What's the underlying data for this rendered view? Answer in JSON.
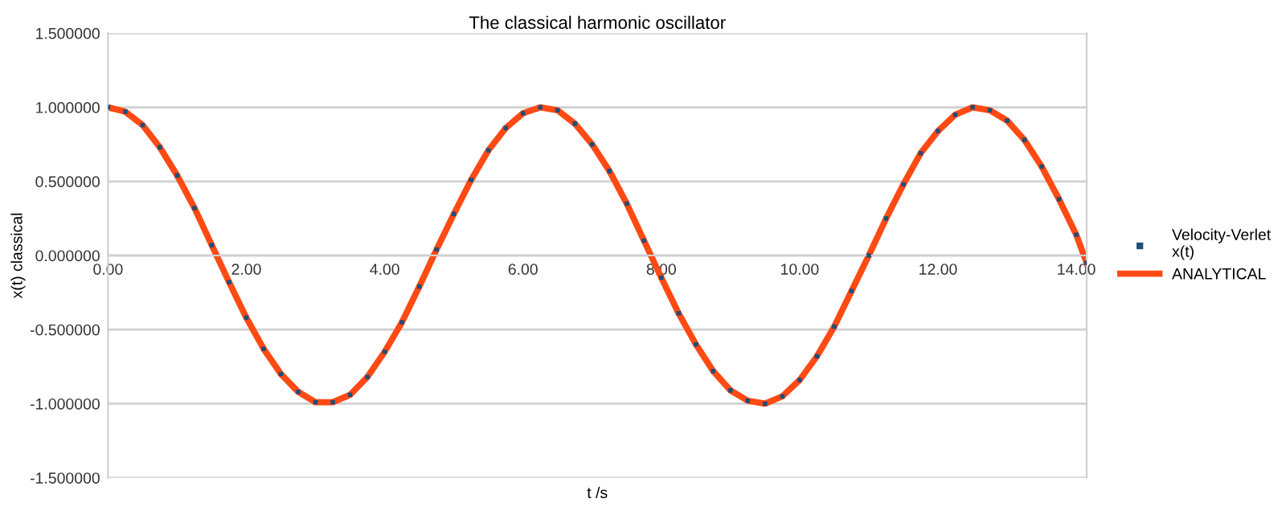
{
  "chart_data": {
    "type": "line",
    "title": "The classical harmonic oscillator",
    "xlabel": "t /s",
    "ylabel": "x(t) classical",
    "x": [
      0,
      0.25,
      0.5,
      0.75,
      1.0,
      1.25,
      1.5,
      1.75,
      2.0,
      2.25,
      2.5,
      2.75,
      3.0,
      3.25,
      3.5,
      3.75,
      4.0,
      4.25,
      4.5,
      4.75,
      5.0,
      5.25,
      5.5,
      5.75,
      6.0,
      6.25,
      6.5,
      6.75,
      7.0,
      7.25,
      7.5,
      7.75,
      8.0,
      8.25,
      8.5,
      8.75,
      9.0,
      9.25,
      9.5,
      9.75,
      10.0,
      10.25,
      10.5,
      10.75,
      11.0,
      11.25,
      11.5,
      11.75,
      12.0,
      12.25,
      12.5,
      12.75,
      13.0,
      13.25,
      13.5,
      13.75,
      14.0,
      14.15
    ],
    "series": [
      {
        "name": "Velocity-Verlet\nx(t)",
        "type": "scatter",
        "marker": "square",
        "color": "#1f4e79",
        "values": [
          1.0,
          0.97,
          0.88,
          0.73,
          0.54,
          0.32,
          0.07,
          -0.18,
          -0.42,
          -0.63,
          -0.8,
          -0.92,
          -0.99,
          -0.99,
          -0.94,
          -0.82,
          -0.65,
          -0.45,
          -0.21,
          0.04,
          0.28,
          0.51,
          0.71,
          0.86,
          0.96,
          1.0,
          0.98,
          0.89,
          0.75,
          0.57,
          0.35,
          0.1,
          -0.15,
          -0.39,
          -0.6,
          -0.78,
          -0.91,
          -0.98,
          -1.0,
          -0.95,
          -0.84,
          -0.68,
          -0.48,
          -0.24,
          0.0,
          0.25,
          0.48,
          0.69,
          0.84,
          0.95,
          1.0,
          0.98,
          0.91,
          0.78,
          0.6,
          0.38,
          0.14,
          -0.05
        ]
      },
      {
        "name": "ANALYTICAL",
        "line_style": "solid",
        "color": "#ff4a14",
        "values": [
          1.0,
          0.97,
          0.88,
          0.73,
          0.54,
          0.32,
          0.07,
          -0.18,
          -0.42,
          -0.63,
          -0.8,
          -0.92,
          -0.99,
          -0.99,
          -0.94,
          -0.82,
          -0.65,
          -0.45,
          -0.21,
          0.04,
          0.28,
          0.51,
          0.71,
          0.86,
          0.96,
          1.0,
          0.98,
          0.89,
          0.75,
          0.57,
          0.35,
          0.1,
          -0.15,
          -0.39,
          -0.6,
          -0.78,
          -0.91,
          -0.98,
          -1.0,
          -0.95,
          -0.84,
          -0.68,
          -0.48,
          -0.24,
          0.0,
          0.25,
          0.48,
          0.69,
          0.84,
          0.95,
          1.0,
          0.98,
          0.91,
          0.78,
          0.6,
          0.38,
          0.14,
          -0.05
        ]
      }
    ],
    "xlim": [
      0,
      14.15
    ],
    "xticks": [
      {
        "value": 0,
        "label": "0.00"
      },
      {
        "value": 2,
        "label": "2.00"
      },
      {
        "value": 4,
        "label": "4.00"
      },
      {
        "value": 6,
        "label": "6.00"
      },
      {
        "value": 8,
        "label": "8.00"
      },
      {
        "value": 10,
        "label": "10.00"
      },
      {
        "value": 12,
        "label": "12.00"
      },
      {
        "value": 14,
        "label": "14.00"
      }
    ],
    "ylim": [
      -1.5,
      1.5
    ],
    "yticks": [
      {
        "value": -1.5,
        "label": "-1.500000"
      },
      {
        "value": -1.0,
        "label": "-1.000000"
      },
      {
        "value": -0.5,
        "label": "-0.500000"
      },
      {
        "value": 0,
        "label": "0.000000"
      },
      {
        "value": 0.5,
        "label": "0.500000"
      },
      {
        "value": 1.0,
        "label": "1.000000"
      },
      {
        "value": 1.5,
        "label": "1.500000"
      }
    ],
    "grid": "y",
    "legend": "right"
  }
}
